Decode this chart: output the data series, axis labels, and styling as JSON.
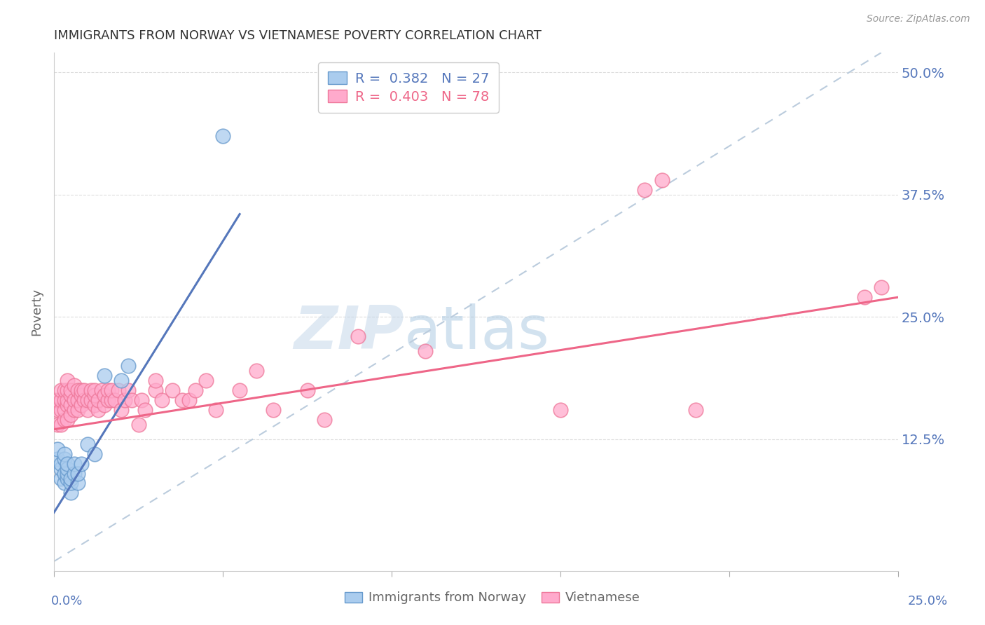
{
  "title": "IMMIGRANTS FROM NORWAY VS VIETNAMESE POVERTY CORRELATION CHART",
  "source": "Source: ZipAtlas.com",
  "ylabel": "Poverty",
  "ytick_labels": [
    "12.5%",
    "25.0%",
    "37.5%",
    "50.0%"
  ],
  "ytick_values": [
    0.125,
    0.25,
    0.375,
    0.5
  ],
  "xlim": [
    0.0,
    0.25
  ],
  "ylim": [
    -0.01,
    0.52
  ],
  "legend_label_norway": "Immigrants from Norway",
  "legend_label_viet": "Vietnamese",
  "color_norway": "#AACCEE",
  "color_norway_edge": "#6699CC",
  "color_norway_line": "#5577BB",
  "color_viet": "#FFAACC",
  "color_viet_edge": "#EE7799",
  "color_viet_line": "#EE6688",
  "color_diagonal": "#BBCCDD",
  "background_color": "#FFFFFF",
  "grid_color": "#DDDDDD",
  "norway_scatter_x": [
    0.001,
    0.001,
    0.002,
    0.002,
    0.002,
    0.003,
    0.003,
    0.003,
    0.003,
    0.004,
    0.004,
    0.004,
    0.004,
    0.005,
    0.005,
    0.005,
    0.006,
    0.006,
    0.007,
    0.007,
    0.008,
    0.01,
    0.012,
    0.015,
    0.02,
    0.022,
    0.05
  ],
  "norway_scatter_y": [
    0.105,
    0.115,
    0.085,
    0.095,
    0.1,
    0.08,
    0.09,
    0.105,
    0.11,
    0.085,
    0.09,
    0.095,
    0.1,
    0.07,
    0.08,
    0.085,
    0.09,
    0.1,
    0.08,
    0.09,
    0.1,
    0.12,
    0.11,
    0.19,
    0.185,
    0.2,
    0.435
  ],
  "viet_scatter_x": [
    0.001,
    0.001,
    0.001,
    0.002,
    0.002,
    0.002,
    0.002,
    0.003,
    0.003,
    0.003,
    0.003,
    0.004,
    0.004,
    0.004,
    0.004,
    0.004,
    0.005,
    0.005,
    0.005,
    0.005,
    0.006,
    0.006,
    0.006,
    0.007,
    0.007,
    0.007,
    0.008,
    0.008,
    0.008,
    0.009,
    0.009,
    0.01,
    0.01,
    0.011,
    0.011,
    0.012,
    0.012,
    0.012,
    0.013,
    0.013,
    0.014,
    0.015,
    0.015,
    0.016,
    0.016,
    0.017,
    0.017,
    0.018,
    0.019,
    0.02,
    0.021,
    0.022,
    0.023,
    0.025,
    0.026,
    0.027,
    0.03,
    0.03,
    0.032,
    0.035,
    0.038,
    0.04,
    0.042,
    0.045,
    0.048,
    0.055,
    0.06,
    0.065,
    0.075,
    0.08,
    0.09,
    0.11,
    0.15,
    0.175,
    0.18,
    0.19,
    0.24,
    0.245
  ],
  "viet_scatter_y": [
    0.14,
    0.155,
    0.165,
    0.14,
    0.155,
    0.165,
    0.175,
    0.145,
    0.155,
    0.165,
    0.175,
    0.145,
    0.16,
    0.165,
    0.175,
    0.185,
    0.15,
    0.16,
    0.17,
    0.175,
    0.155,
    0.165,
    0.18,
    0.155,
    0.165,
    0.175,
    0.16,
    0.17,
    0.175,
    0.165,
    0.175,
    0.155,
    0.165,
    0.165,
    0.175,
    0.16,
    0.17,
    0.175,
    0.155,
    0.165,
    0.175,
    0.16,
    0.17,
    0.165,
    0.175,
    0.165,
    0.175,
    0.165,
    0.175,
    0.155,
    0.165,
    0.175,
    0.165,
    0.14,
    0.165,
    0.155,
    0.175,
    0.185,
    0.165,
    0.175,
    0.165,
    0.165,
    0.175,
    0.185,
    0.155,
    0.175,
    0.195,
    0.155,
    0.175,
    0.145,
    0.23,
    0.215,
    0.155,
    0.38,
    0.39,
    0.155,
    0.27,
    0.28
  ],
  "norway_line_x": [
    0.0,
    0.055
  ],
  "norway_line_y": [
    0.05,
    0.355
  ],
  "viet_line_x": [
    0.0,
    0.25
  ],
  "viet_line_y": [
    0.135,
    0.27
  ],
  "diag_line_x": [
    0.0,
    0.245
  ],
  "diag_line_y": [
    0.0,
    0.52
  ],
  "watermark_zip": "ZIP",
  "watermark_atlas": "atlas"
}
